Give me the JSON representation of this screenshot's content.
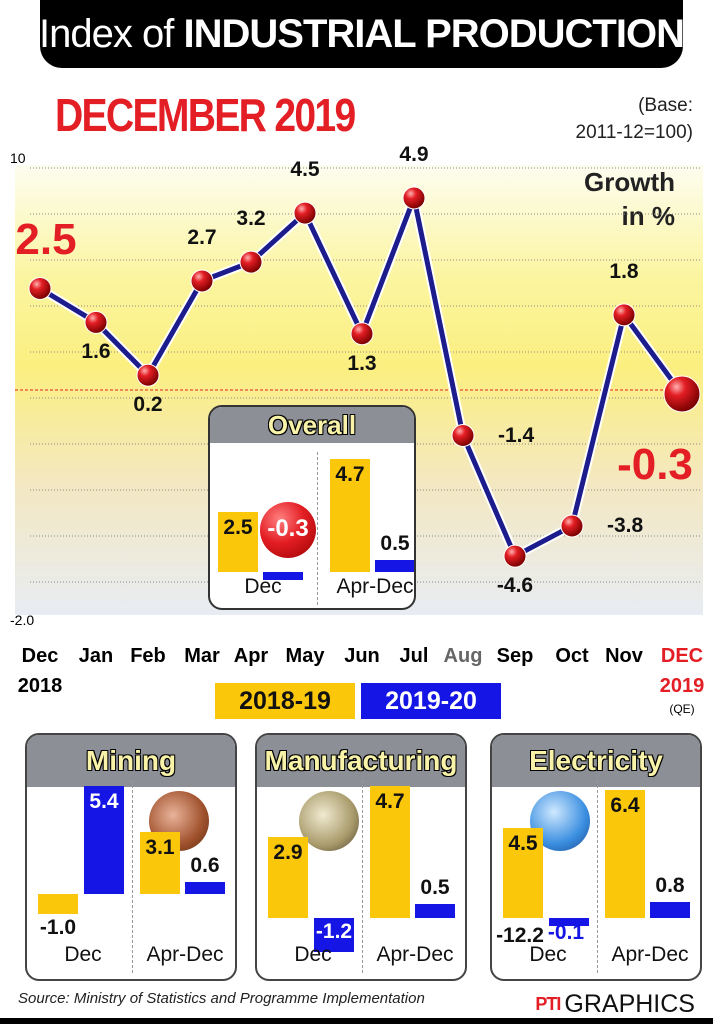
{
  "header": {
    "title_prefix": "Index of ",
    "title_bold": "INDUSTRIAL PRODUCTION",
    "subtitle": "DECEMBER 2019",
    "base_line1": "(Base:",
    "base_line2": "2011-12=100)",
    "growth_line1": "Growth",
    "growth_line2": "in %"
  },
  "colors": {
    "y1819": "#fbc70a",
    "y1920": "#1515e6",
    "red": "#e31e24",
    "line": "#1c1c8c"
  },
  "chart_data": {
    "type": "line",
    "title": "Index of INDUSTRIAL PRODUCTION",
    "ylabel": "Growth in %",
    "y_tick_labels": [
      "10",
      "-2.0"
    ],
    "categories": [
      "Dec",
      "Jan",
      "Feb",
      "Mar",
      "Apr",
      "May",
      "Jun",
      "Jul",
      "Aug",
      "Sep",
      "Oct",
      "Nov",
      "DEC"
    ],
    "category_sublabels": {
      "0": "2018",
      "12": "2019"
    },
    "qe_note": "(QE)",
    "values": [
      2.5,
      1.6,
      0.2,
      2.7,
      3.2,
      4.5,
      1.3,
      4.9,
      -1.4,
      -4.6,
      -3.8,
      1.8,
      -0.3
    ],
    "value_labels": [
      "2.5",
      "1.6",
      "0.2",
      "2.7",
      "3.2",
      "4.5",
      "1.3",
      "4.9",
      "-1.4",
      "-4.6",
      "-3.8",
      "1.8",
      "-0.3"
    ]
  },
  "legend": [
    {
      "label": "2018-19"
    },
    {
      "label": "2019-20"
    }
  ],
  "overall": {
    "title": "Overall",
    "groups": [
      {
        "label": "Dec",
        "v1819": 2.5,
        "v1920": -0.3,
        "l1819": "2.5",
        "l1920": "-0.3"
      },
      {
        "label": "Apr-Dec",
        "v1819": 4.7,
        "v1920": 0.5,
        "l1819": "4.7",
        "l1920": "0.5"
      }
    ]
  },
  "sectors": [
    {
      "title": "Mining",
      "groups": [
        {
          "label": "Dec",
          "v1819": -1.0,
          "v1920": 5.4,
          "l1819": "-1.0",
          "l1920": "5.4"
        },
        {
          "label": "Apr-Dec",
          "v1819": 3.1,
          "v1920": 0.6,
          "l1819": "3.1",
          "l1920": "0.6"
        }
      ]
    },
    {
      "title": "Manufacturing",
      "groups": [
        {
          "label": "Dec",
          "v1819": 2.9,
          "v1920": -1.2,
          "l1819": "2.9",
          "l1920": "-1.2"
        },
        {
          "label": "Apr-Dec",
          "v1819": 4.7,
          "v1920": 0.5,
          "l1819": "4.7",
          "l1920": "0.5"
        }
      ]
    },
    {
      "title": "Electricity",
      "extra_label": "-12.2",
      "groups": [
        {
          "label": "Dec",
          "v1819": 4.5,
          "v1920": -0.1,
          "l1819": "4.5",
          "l1920": "-0.1"
        },
        {
          "label": "Apr-Dec",
          "v1819": 6.4,
          "v1920": 0.8,
          "l1819": "6.4",
          "l1920": "0.8"
        }
      ]
    }
  ],
  "footer": {
    "source": "Source: Ministry of Statistics and Programme Implementation",
    "brand": "GRAPHICS",
    "logo": "PTI"
  }
}
